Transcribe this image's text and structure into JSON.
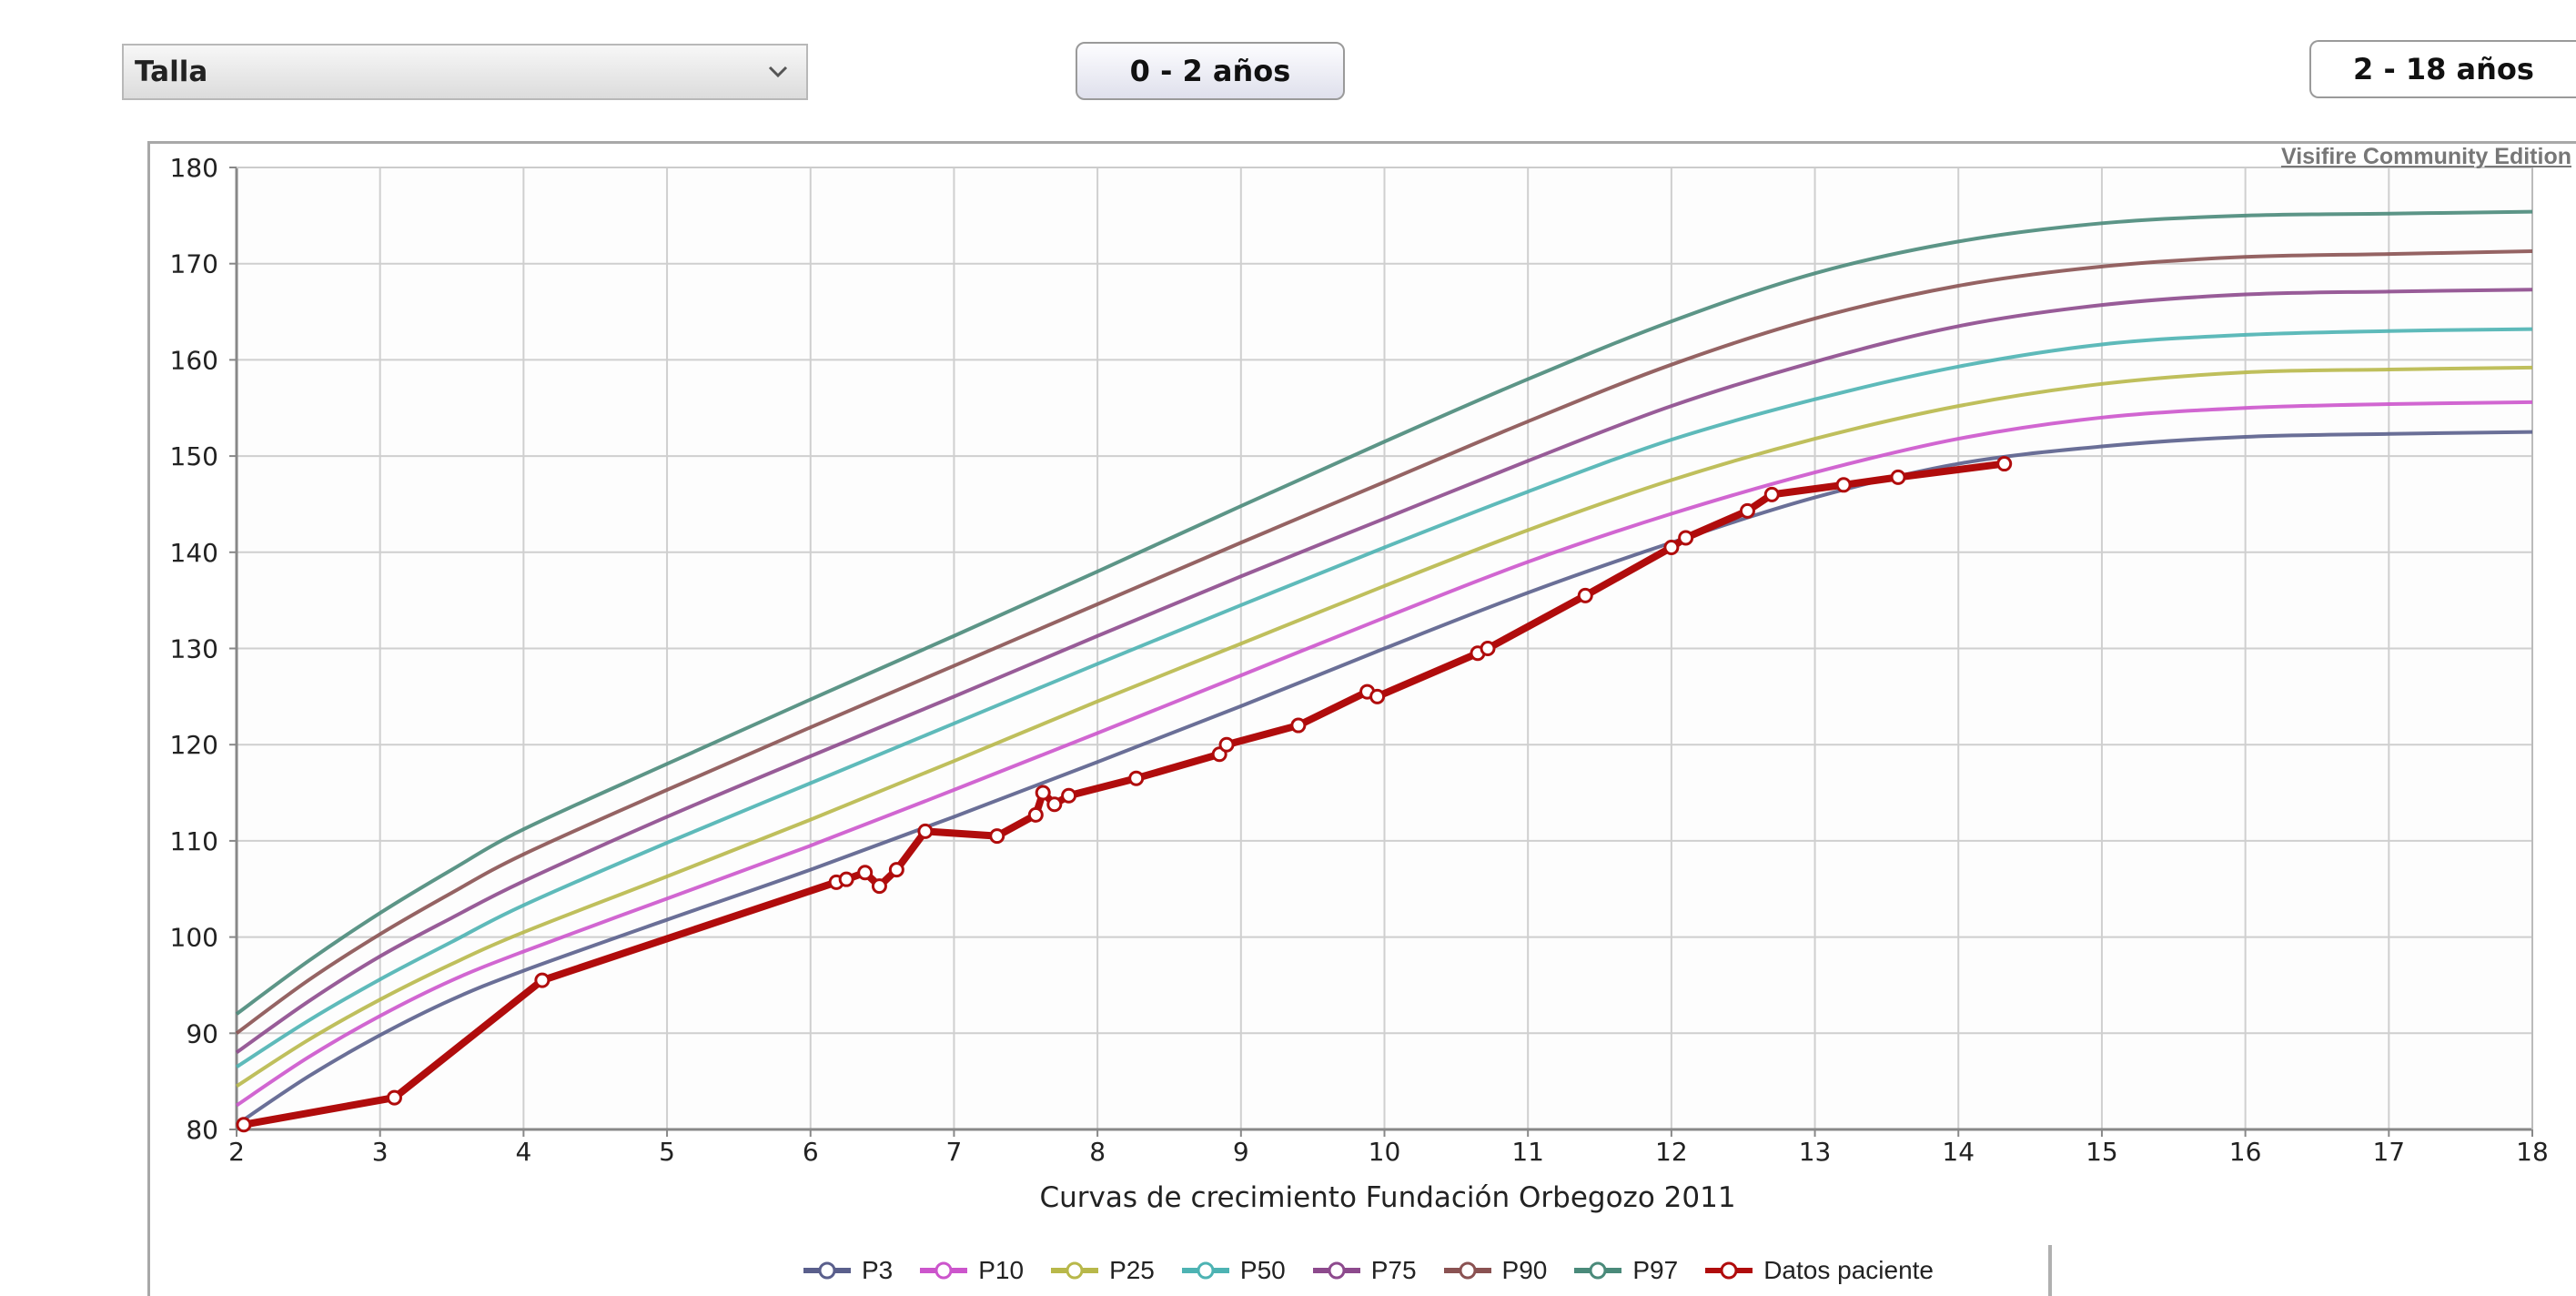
{
  "controls": {
    "measure_select": "Talla",
    "btn_0_2": "0 - 2 años",
    "btn_2_18": "2 - 18 años"
  },
  "watermark": "Visifire Community Edition",
  "colors": {
    "grid": "#cfcfcf",
    "plot_bg": "#fdfdfd",
    "patient": "#b00c0c"
  },
  "chart_data": {
    "type": "line",
    "title": "",
    "xlabel": "Curvas de crecimiento Fundación Orbegozo 2011",
    "ylabel": "",
    "xlim": [
      2,
      18
    ],
    "ylim": [
      80,
      180
    ],
    "x_ticks": [
      2,
      3,
      4,
      5,
      6,
      7,
      8,
      9,
      10,
      11,
      12,
      13,
      14,
      15,
      16,
      17,
      18
    ],
    "y_ticks": [
      80,
      90,
      100,
      110,
      120,
      130,
      140,
      150,
      160,
      170,
      180
    ],
    "grid": true,
    "legend_position": "bottom",
    "x": [
      2,
      2.5,
      3,
      3.5,
      4,
      5,
      6,
      7,
      8,
      9,
      10,
      11,
      12,
      13,
      14,
      15,
      16,
      17,
      18
    ],
    "series": [
      {
        "name": "P3",
        "color": "#5a5f8c",
        "values": [
          80.5,
          85.5,
          89.8,
          93.5,
          96.5,
          101.8,
          107.0,
          112.5,
          118.2,
          124.0,
          130.0,
          135.8,
          141.0,
          145.7,
          149.2,
          151.0,
          152.0,
          152.3,
          152.5
        ]
      },
      {
        "name": "P10",
        "color": "#cc55cc",
        "values": [
          82.5,
          87.5,
          91.8,
          95.5,
          98.5,
          104.0,
          109.5,
          115.3,
          121.2,
          127.2,
          133.2,
          139.0,
          144.0,
          148.3,
          151.8,
          154.0,
          155.0,
          155.4,
          155.6
        ]
      },
      {
        "name": "P25",
        "color": "#b8b84a",
        "values": [
          84.5,
          89.3,
          93.5,
          97.2,
          100.5,
          106.3,
          112.2,
          118.3,
          124.5,
          130.5,
          136.5,
          142.3,
          147.5,
          151.8,
          155.2,
          157.5,
          158.7,
          159.0,
          159.2
        ]
      },
      {
        "name": "P50",
        "color": "#4db3b3",
        "values": [
          86.5,
          91.3,
          95.6,
          99.5,
          103.3,
          109.8,
          116.0,
          122.2,
          128.4,
          134.5,
          140.5,
          146.3,
          151.7,
          155.9,
          159.3,
          161.6,
          162.6,
          163.0,
          163.2
        ]
      },
      {
        "name": "P75",
        "color": "#8d4a8d",
        "values": [
          88.0,
          93.3,
          98.0,
          102.0,
          105.8,
          112.5,
          118.8,
          125.0,
          131.3,
          137.5,
          143.5,
          149.5,
          155.2,
          159.8,
          163.5,
          165.7,
          166.8,
          167.1,
          167.3
        ]
      },
      {
        "name": "P90",
        "color": "#8a5252",
        "values": [
          90.0,
          95.5,
          100.3,
          104.6,
          108.6,
          115.3,
          121.8,
          128.2,
          134.6,
          141.0,
          147.3,
          153.6,
          159.5,
          164.3,
          167.7,
          169.7,
          170.7,
          171.0,
          171.3
        ]
      },
      {
        "name": "P97",
        "color": "#4a8a7a",
        "values": [
          92.0,
          97.5,
          102.5,
          107.0,
          111.2,
          118.0,
          124.7,
          131.3,
          138.0,
          144.8,
          151.5,
          158.0,
          164.0,
          169.0,
          172.3,
          174.2,
          175.0,
          175.2,
          175.4
        ]
      }
    ],
    "patient": {
      "name": "Datos paciente",
      "points": [
        [
          2.05,
          80.5
        ],
        [
          3.1,
          83.3
        ],
        [
          4.13,
          95.5
        ],
        [
          6.18,
          105.7
        ],
        [
          6.25,
          106.0
        ],
        [
          6.38,
          106.7
        ],
        [
          6.48,
          105.3
        ],
        [
          6.6,
          107.0
        ],
        [
          6.8,
          111.0
        ],
        [
          7.3,
          110.5
        ],
        [
          7.57,
          112.7
        ],
        [
          7.62,
          115.0
        ],
        [
          7.7,
          113.8
        ],
        [
          7.8,
          114.7
        ],
        [
          8.27,
          116.5
        ],
        [
          8.85,
          119.0
        ],
        [
          8.9,
          120.0
        ],
        [
          9.4,
          122.0
        ],
        [
          9.88,
          125.5
        ],
        [
          9.95,
          125.0
        ],
        [
          10.65,
          129.5
        ],
        [
          10.72,
          130.0
        ],
        [
          11.4,
          135.5
        ],
        [
          12.0,
          140.5
        ],
        [
          12.1,
          141.5
        ],
        [
          12.53,
          144.3
        ],
        [
          12.7,
          146.0
        ],
        [
          13.2,
          147.0
        ],
        [
          13.58,
          147.8
        ],
        [
          14.32,
          149.2
        ]
      ]
    }
  }
}
